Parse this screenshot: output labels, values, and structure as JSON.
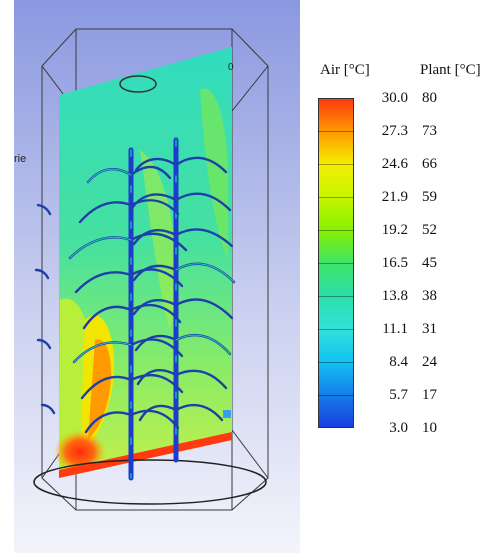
{
  "legend": {
    "air_title": "Air [°C]",
    "plant_title": "Plant [°C]",
    "air_values": [
      "30.0",
      "27.3",
      "24.6",
      "21.9",
      "19.2",
      "16.5",
      "13.8",
      "11.1",
      "8.4",
      "5.7",
      "3.0"
    ],
    "plant_values": [
      "80",
      "73",
      "66",
      "59",
      "52",
      "45",
      "38",
      "31",
      "24",
      "17",
      "10"
    ],
    "colors": [
      "#ff3a10",
      "#ff9a00",
      "#f4ee00",
      "#c6f500",
      "#86f000",
      "#3fe468",
      "#2cdea8",
      "#31e2d8",
      "#12c2f2",
      "#147fe8",
      "#1a40e0"
    ]
  },
  "scene": {
    "left_edge_text": "rie",
    "lid_mark": "0"
  }
}
